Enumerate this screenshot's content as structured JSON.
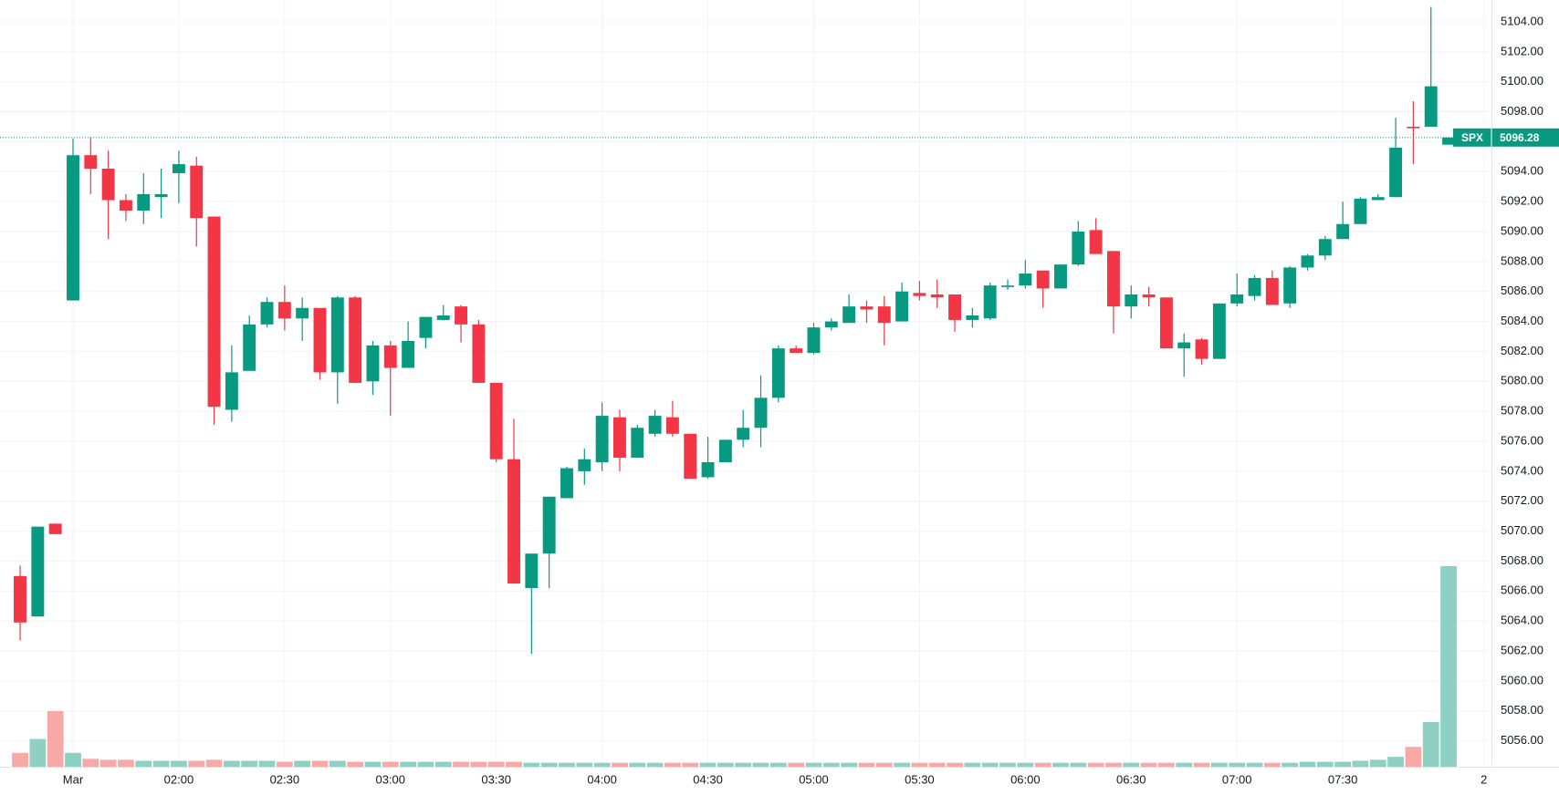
{
  "chart_data": {
    "type": "candlestick",
    "up_color": "#089981",
    "down_color": "#f23645",
    "volume_up_color": "#8fd0c4",
    "volume_down_color": "#f7a9a7",
    "grid": true,
    "open": [
      5067.0,
      5064.3,
      5070.5,
      5085.4,
      5095.1,
      5094.2,
      5092.1,
      5091.4,
      5092.3,
      5093.9,
      5094.4,
      5091.0,
      5078.1,
      5080.7,
      5083.8,
      5085.3,
      5084.2,
      5084.9,
      5080.6,
      5085.6,
      5080.0,
      5082.4,
      5080.9,
      5082.9,
      5084.1,
      5085.0,
      5083.8,
      5079.9,
      5074.8,
      5066.2,
      5068.5,
      5072.2,
      5074.0,
      5074.6,
      5077.6,
      5074.9,
      5076.5,
      5077.6,
      5076.5,
      5073.6,
      5074.6,
      5076.1,
      5076.9,
      5078.9,
      5082.2,
      5081.9,
      5083.6,
      5083.9,
      5085.0,
      5085.0,
      5084.0,
      5085.9,
      5085.8,
      5085.8,
      5084.1,
      5084.2,
      5086.3,
      5086.4,
      5087.4,
      5086.2,
      5087.8,
      5090.1,
      5088.7,
      5085.0,
      5085.8,
      5085.6,
      5082.2,
      5082.8,
      5081.5,
      5085.2,
      5085.7,
      5086.9,
      5085.2,
      5087.6,
      5088.4,
      5089.5,
      5090.5,
      5092.1,
      5092.3,
      5097.0,
      5097.0,
      5095.8
    ],
    "high": [
      5067.7,
      5070.3,
      5070.5,
      5096.2,
      5096.3,
      5095.4,
      5092.5,
      5093.9,
      5094.2,
      5095.4,
      5095.0,
      5091.0,
      5082.4,
      5084.4,
      5085.6,
      5086.4,
      5085.6,
      5084.9,
      5085.7,
      5085.7,
      5082.7,
      5082.7,
      5084.0,
      5084.3,
      5085.1,
      5085.1,
      5084.1,
      5079.9,
      5077.5,
      5068.5,
      5072.3,
      5074.3,
      5075.5,
      5078.6,
      5078.1,
      5077.1,
      5078.1,
      5078.7,
      5076.5,
      5076.3,
      5076.1,
      5078.1,
      5080.4,
      5082.4,
      5082.4,
      5083.9,
      5084.2,
      5085.8,
      5085.4,
      5085.7,
      5086.6,
      5086.7,
      5086.8,
      5085.8,
      5084.9,
      5086.6,
      5086.8,
      5088.1,
      5087.4,
      5087.8,
      5090.7,
      5090.9,
      5088.7,
      5086.4,
      5086.3,
      5085.6,
      5083.2,
      5082.9,
      5085.2,
      5087.2,
      5087.1,
      5087.4,
      5087.7,
      5088.5,
      5089.7,
      5092.0,
      5092.3,
      5092.5,
      5097.6,
      5098.7,
      5105.0,
      5096.3
    ],
    "low": [
      5062.7,
      5064.3,
      5069.8,
      5085.4,
      5092.5,
      5089.5,
      5090.7,
      5090.5,
      5090.9,
      5091.9,
      5089.0,
      5077.1,
      5077.3,
      5080.7,
      5083.6,
      5083.4,
      5082.7,
      5080.1,
      5078.5,
      5079.9,
      5079.1,
      5077.7,
      5080.9,
      5082.2,
      5084.1,
      5082.6,
      5079.9,
      5074.6,
      5066.5,
      5061.8,
      5066.2,
      5072.2,
      5073.1,
      5074.0,
      5074.0,
      5074.9,
      5076.3,
      5076.3,
      5073.5,
      5073.5,
      5074.6,
      5075.6,
      5075.6,
      5078.6,
      5081.9,
      5081.8,
      5083.4,
      5083.9,
      5083.9,
      5082.4,
      5084.0,
      5085.4,
      5084.9,
      5083.3,
      5083.6,
      5084.1,
      5086.1,
      5086.2,
      5084.9,
      5086.2,
      5087.7,
      5088.5,
      5083.2,
      5084.2,
      5085.0,
      5082.2,
      5080.3,
      5081.1,
      5081.5,
      5085.0,
      5085.4,
      5085.1,
      5084.9,
      5087.4,
      5088.1,
      5089.5,
      5090.5,
      5092.1,
      5092.3,
      5094.5,
      5097.0,
      5095.8
    ],
    "close": [
      5063.9,
      5070.3,
      5069.8,
      5095.1,
      5094.2,
      5092.1,
      5091.4,
      5092.5,
      5092.5,
      5094.5,
      5090.9,
      5078.3,
      5080.6,
      5083.8,
      5085.3,
      5084.2,
      5084.9,
      5080.6,
      5085.6,
      5079.9,
      5082.4,
      5080.9,
      5082.7,
      5084.3,
      5084.4,
      5083.8,
      5079.9,
      5074.8,
      5066.5,
      5068.5,
      5072.3,
      5074.2,
      5074.8,
      5077.7,
      5074.9,
      5076.9,
      5077.7,
      5076.5,
      5073.5,
      5074.6,
      5076.1,
      5076.9,
      5078.9,
      5082.2,
      5081.9,
      5083.6,
      5084.0,
      5085.0,
      5084.8,
      5083.9,
      5086.0,
      5085.7,
      5085.6,
      5084.1,
      5084.4,
      5086.4,
      5086.4,
      5087.2,
      5086.2,
      5087.8,
      5090.0,
      5088.5,
      5085.0,
      5085.8,
      5085.6,
      5082.2,
      5082.6,
      5081.5,
      5085.2,
      5085.8,
      5086.9,
      5085.1,
      5087.6,
      5088.4,
      5089.5,
      5090.5,
      5092.2,
      5092.3,
      5095.6,
      5096.9,
      5099.7,
      5096.28
    ],
    "volume": [
      14,
      28,
      56,
      14,
      8,
      7,
      7,
      6,
      6,
      6,
      6,
      7,
      6,
      6,
      6,
      5,
      6,
      6,
      6,
      5,
      5,
      5,
      5,
      5,
      5,
      5,
      5,
      5,
      5,
      4,
      4,
      4,
      4,
      4,
      4,
      4,
      4,
      4,
      4,
      4,
      4,
      4,
      4,
      4,
      4,
      4,
      4,
      4,
      4,
      4,
      4,
      4,
      4,
      4,
      4,
      4,
      4,
      4,
      4,
      4,
      4,
      4,
      4,
      4,
      4,
      4,
      4,
      4,
      4,
      4,
      4,
      4,
      4,
      5,
      5,
      5,
      6,
      7,
      10,
      20,
      45,
      202
    ],
    "volume_lim": [
      0,
      772
    ],
    "xlim": [
      -1.14,
      83.43
    ],
    "xticks": [
      {
        "value": 3,
        "label": "Mar"
      },
      {
        "value": 9,
        "label": "02:00"
      },
      {
        "value": 15,
        "label": "02:30"
      },
      {
        "value": 21,
        "label": "03:00"
      },
      {
        "value": 27,
        "label": "03:30"
      },
      {
        "value": 33,
        "label": "04:00"
      },
      {
        "value": 39,
        "label": "04:30"
      },
      {
        "value": 45,
        "label": "05:00"
      },
      {
        "value": 51,
        "label": "05:30"
      },
      {
        "value": 57,
        "label": "06:00"
      },
      {
        "value": 63,
        "label": "06:30"
      },
      {
        "value": 69,
        "label": "07:00"
      },
      {
        "value": 75,
        "label": "07:30"
      },
      {
        "value": 83,
        "label": "2"
      }
    ],
    "ylim": [
      5054.27,
      5105.46
    ],
    "yticks": [
      {
        "value": 5056,
        "label": "5056.00"
      },
      {
        "value": 5058,
        "label": "5058.00"
      },
      {
        "value": 5060,
        "label": "5060.00"
      },
      {
        "value": 5062,
        "label": "5062.00"
      },
      {
        "value": 5064,
        "label": "5064.00"
      },
      {
        "value": 5066,
        "label": "5066.00"
      },
      {
        "value": 5068,
        "label": "5068.00"
      },
      {
        "value": 5070,
        "label": "5070.00"
      },
      {
        "value": 5072,
        "label": "5072.00"
      },
      {
        "value": 5074,
        "label": "5074.00"
      },
      {
        "value": 5076,
        "label": "5076.00"
      },
      {
        "value": 5078,
        "label": "5078.00"
      },
      {
        "value": 5080,
        "label": "5080.00"
      },
      {
        "value": 5082,
        "label": "5082.00"
      },
      {
        "value": 5084,
        "label": "5084.00"
      },
      {
        "value": 5086,
        "label": "5086.00"
      },
      {
        "value": 5088,
        "label": "5088.00"
      },
      {
        "value": 5090,
        "label": "5090.00"
      },
      {
        "value": 5092,
        "label": "5092.00"
      },
      {
        "value": 5094,
        "label": "5094.00"
      },
      {
        "value": 5096,
        "label": "5096.00"
      },
      {
        "value": 5098,
        "label": "5098.00"
      },
      {
        "value": 5100,
        "label": "5100.00"
      },
      {
        "value": 5102,
        "label": "5102.00"
      },
      {
        "value": 5104,
        "label": "5104.00"
      }
    ],
    "last_price": {
      "label": "SPX",
      "value": 5096.28
    }
  }
}
